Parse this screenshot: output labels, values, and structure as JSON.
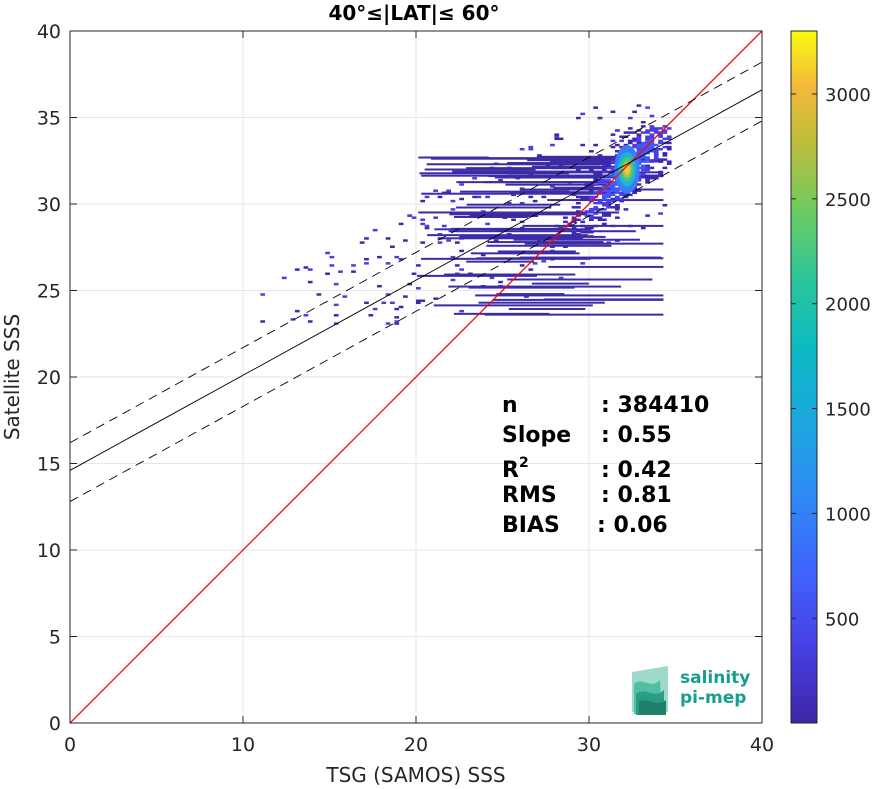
{
  "chart_data": {
    "type": "heatmap",
    "title": "40°≤|LAT|≤ 60°",
    "xlabel": "TSG (SAMOS) SSS",
    "ylabel": "Satellite SSS",
    "xlim": [
      0,
      40
    ],
    "ylim": [
      0,
      40
    ],
    "xticks": [
      0,
      10,
      20,
      30,
      40
    ],
    "yticks": [
      0,
      5,
      10,
      15,
      20,
      25,
      30,
      35,
      40
    ],
    "grid": true,
    "colormap": "parula",
    "colorbar": {
      "range": [
        1,
        3300
      ],
      "ticks": [
        500,
        1000,
        1500,
        2000,
        2500,
        3000
      ],
      "position": "right"
    },
    "density_peak": {
      "x": 32.2,
      "y": 32.0
    },
    "density_cloud": {
      "x_range": [
        11,
        37
      ],
      "y_range": [
        21,
        36
      ],
      "core_x_range": [
        28,
        34.5
      ],
      "core_y_range": [
        27,
        34.5
      ]
    },
    "lines": [
      {
        "name": "1:1",
        "color": "#ff0000",
        "style": "solid",
        "slope": 1,
        "intercept": 0
      },
      {
        "name": "fit",
        "color": "#000000",
        "style": "solid",
        "slope": 0.55,
        "intercept": 14.6
      },
      {
        "name": "fit+std",
        "color": "#000000",
        "style": "dashed",
        "slope": 0.55,
        "intercept": 16.2
      },
      {
        "name": "fit-std",
        "color": "#000000",
        "style": "dashed",
        "slope": 0.55,
        "intercept": 12.8
      }
    ],
    "stats": [
      {
        "label": "n",
        "value": ": 384410"
      },
      {
        "label": "Slope",
        "value": ": 0.55"
      },
      {
        "label": "R",
        "sup": "2",
        "value": ": 0.42"
      },
      {
        "label": "RMS",
        "value": ": 0.81"
      },
      {
        "label": "BIAS",
        "value": ": 0.06"
      }
    ],
    "logo": {
      "line1": "salinity",
      "line2": "pi-mep",
      "color": "#1a9e8c"
    }
  }
}
